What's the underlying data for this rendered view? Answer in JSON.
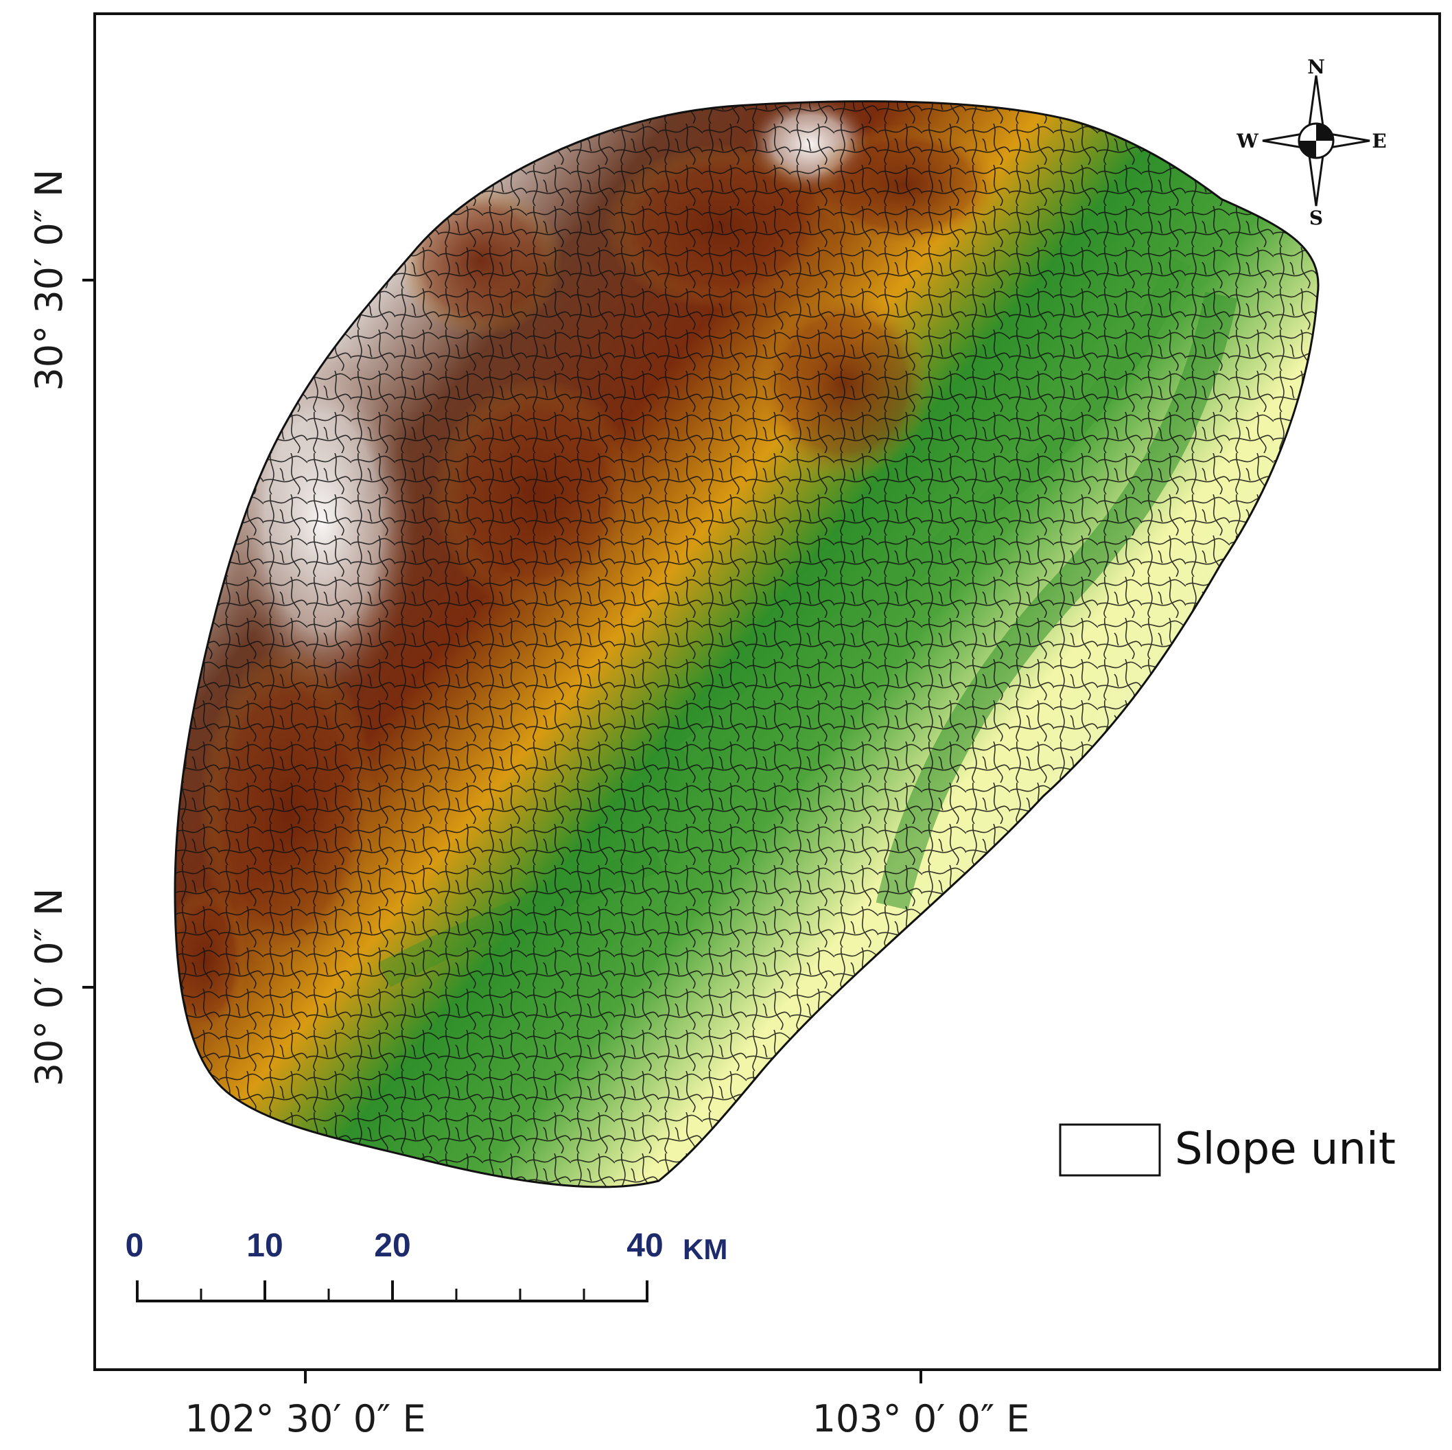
{
  "map": {
    "lat_labels": [
      {
        "value": 30.5,
        "text": "30° 30′ 0″ N"
      },
      {
        "value": 30.0,
        "text": "30° 0′ 0″ N"
      }
    ],
    "lon_labels": [
      {
        "value": 102.5,
        "text": "102° 30′ 0″ E"
      },
      {
        "value": 103.0,
        "text": "103° 0′ 0″ E"
      }
    ],
    "compass": {
      "north": "N",
      "south": "S",
      "east": "E",
      "west": "W"
    },
    "scale_bar": {
      "ticks": [
        "0",
        "10",
        "20",
        "40"
      ],
      "unit": "KM",
      "range_km": [
        0,
        40
      ]
    },
    "legend": {
      "label": "Slope unit"
    },
    "colors": {
      "frame": "#111111",
      "unit_boundary": "#111111",
      "legend_box": "#ffffff",
      "elevation_low": "#9de3d6",
      "elevation_mid_low": "#f2f6a8",
      "elevation_mid": "#2f8f2a",
      "elevation_mid_high": "#d99a12",
      "elevation_high": "#7a2b0d",
      "elevation_peak": "#ffffff"
    }
  }
}
